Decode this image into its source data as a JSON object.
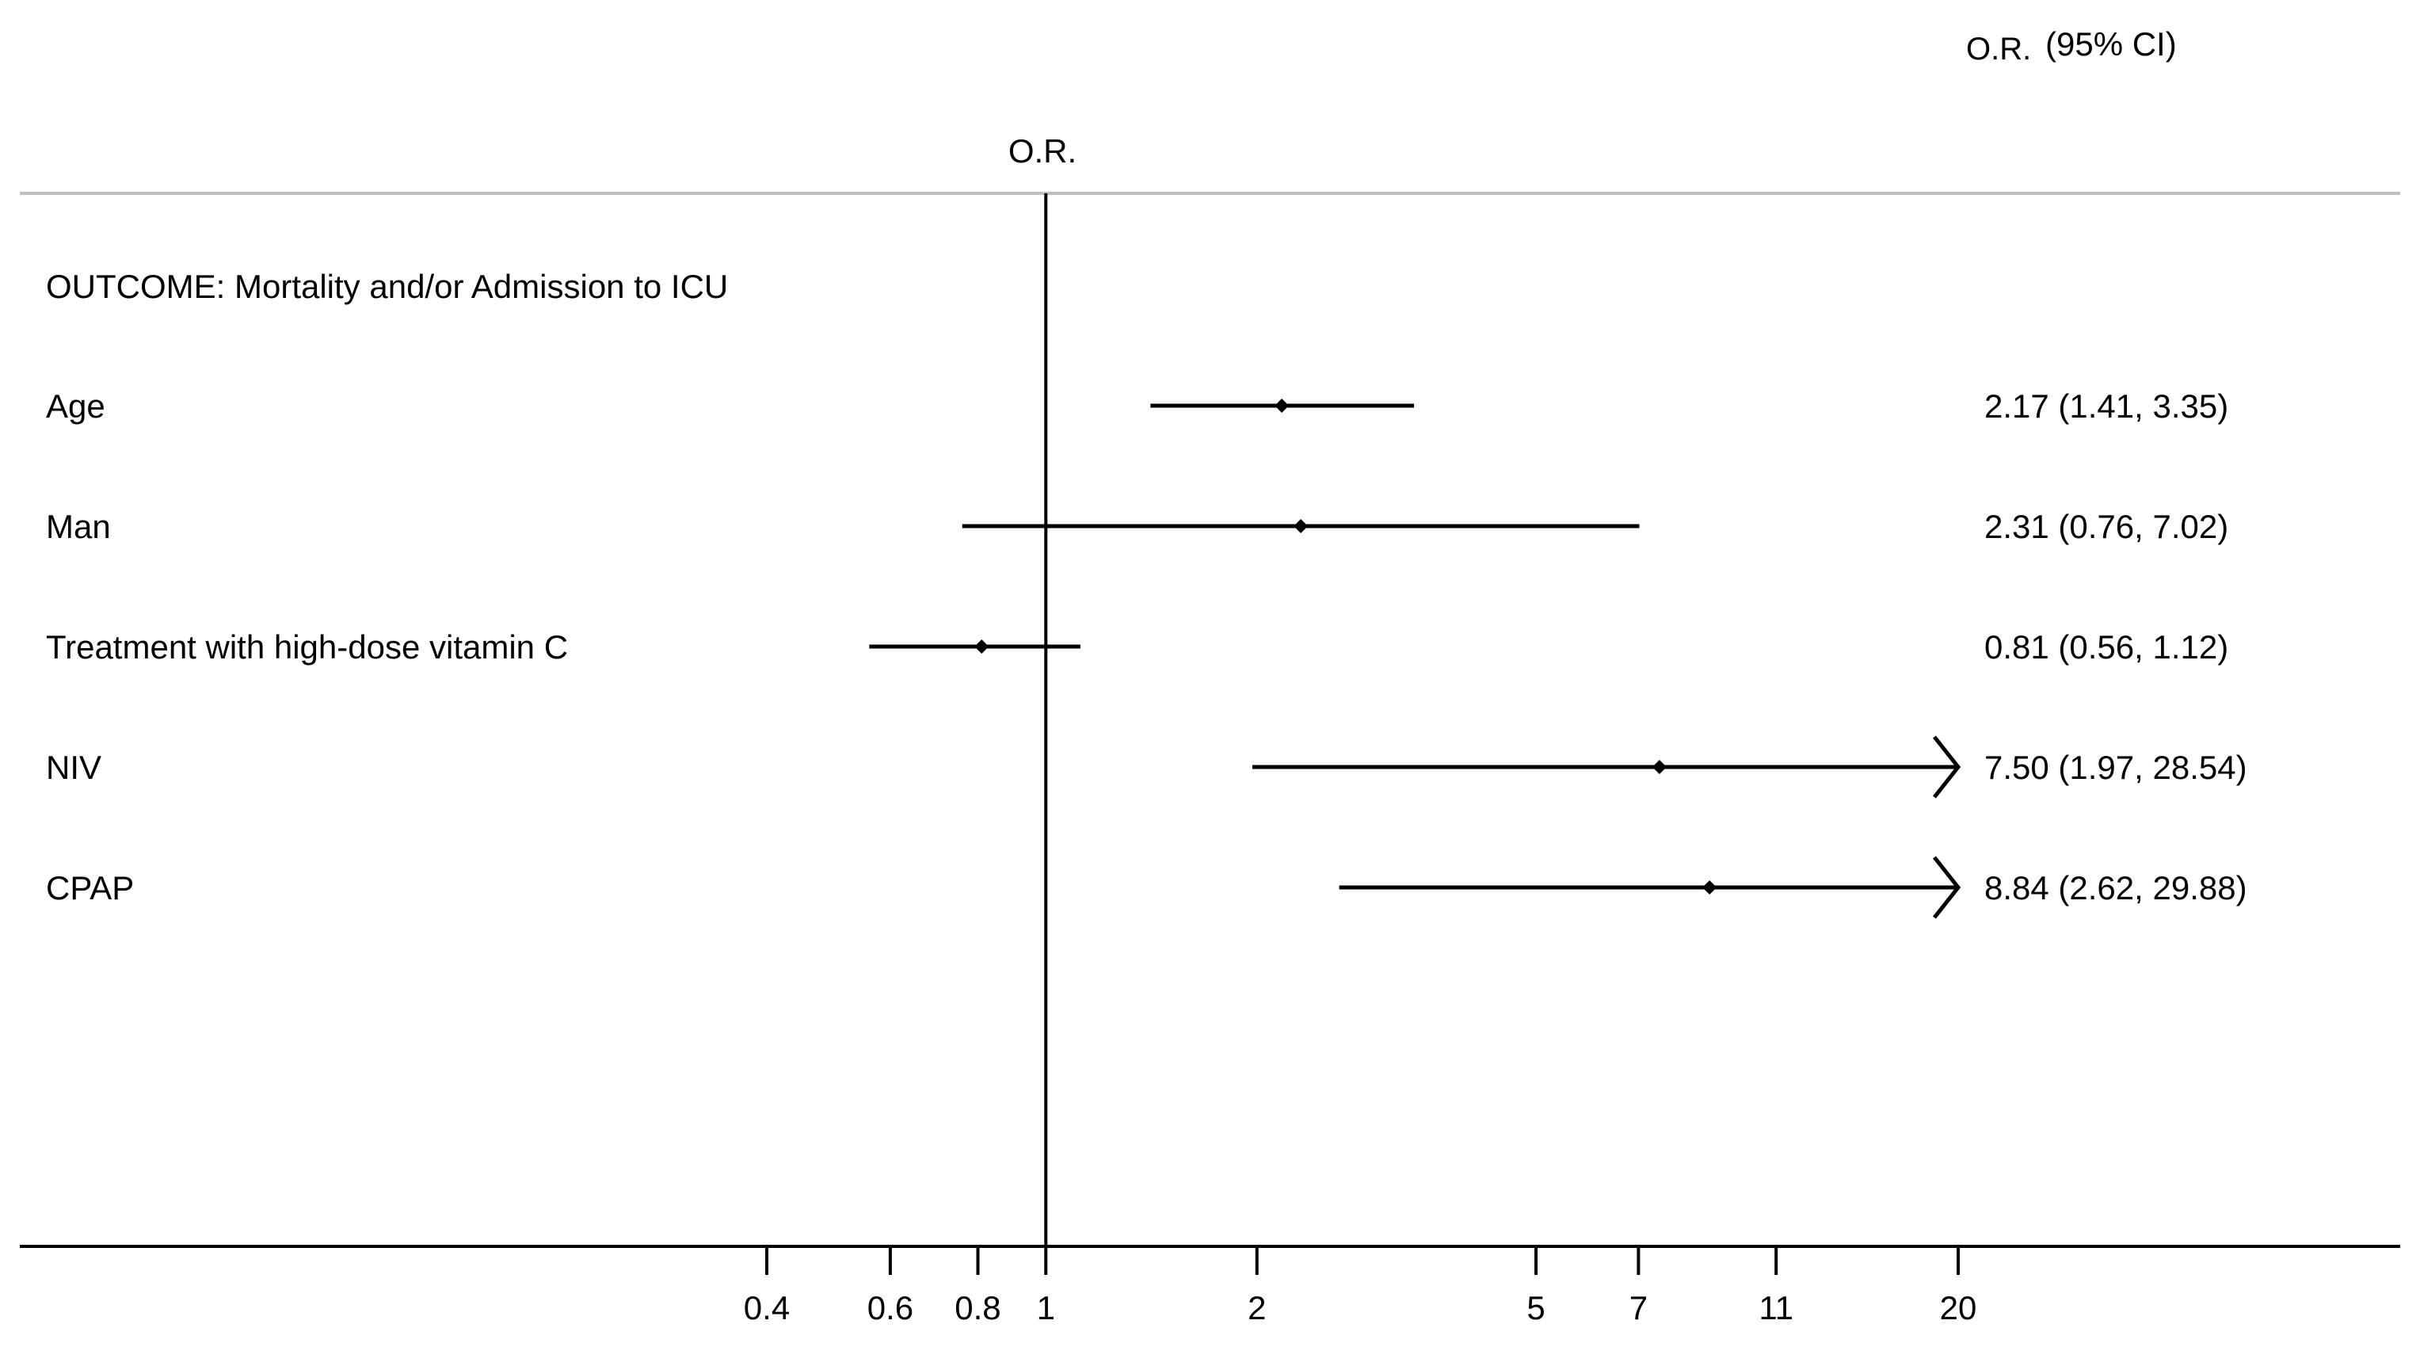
{
  "chart_data": {
    "type": "forest",
    "header_col1": "O.R.",
    "header_col2": "(95% CI)",
    "axis_label": "O.R.",
    "section_title": "OUTCOME: Mortality and/or Admission to ICU",
    "x_scale": "log",
    "xlim": [
      0.4,
      20
    ],
    "reference_line": 1,
    "ticks": [
      {
        "value": 0.4,
        "label": "0.4"
      },
      {
        "value": 0.6,
        "label": "0.6"
      },
      {
        "value": 0.8,
        "label": "0.8"
      },
      {
        "value": 1,
        "label": "1"
      },
      {
        "value": 2,
        "label": "2"
      },
      {
        "value": 5,
        "label": "5"
      },
      {
        "value": 7,
        "label": "7"
      },
      {
        "value": 11,
        "label": "11"
      },
      {
        "value": 20,
        "label": "20"
      }
    ],
    "rows": [
      {
        "label": "Age",
        "or": 2.17,
        "lo": 1.41,
        "hi": 3.35,
        "text": "2.17 (1.41, 3.35)",
        "truncated_right": false
      },
      {
        "label": "Man",
        "or": 2.31,
        "lo": 0.76,
        "hi": 7.02,
        "text": "2.31 (0.76, 7.02)",
        "truncated_right": false
      },
      {
        "label": "Treatment with high-dose vitamin C",
        "or": 0.81,
        "lo": 0.56,
        "hi": 1.12,
        "text": "0.81 (0.56, 1.12)",
        "truncated_right": false
      },
      {
        "label": "NIV",
        "or": 7.5,
        "lo": 1.97,
        "hi": 28.54,
        "text": "7.50 (1.97, 28.54)",
        "truncated_right": true
      },
      {
        "label": "CPAP",
        "or": 8.84,
        "lo": 2.62,
        "hi": 29.88,
        "text": "8.84 (2.62, 29.88)",
        "truncated_right": true
      }
    ],
    "grid": false,
    "colors": {
      "ink": "#000000",
      "separator": "#bfbfbf"
    }
  }
}
